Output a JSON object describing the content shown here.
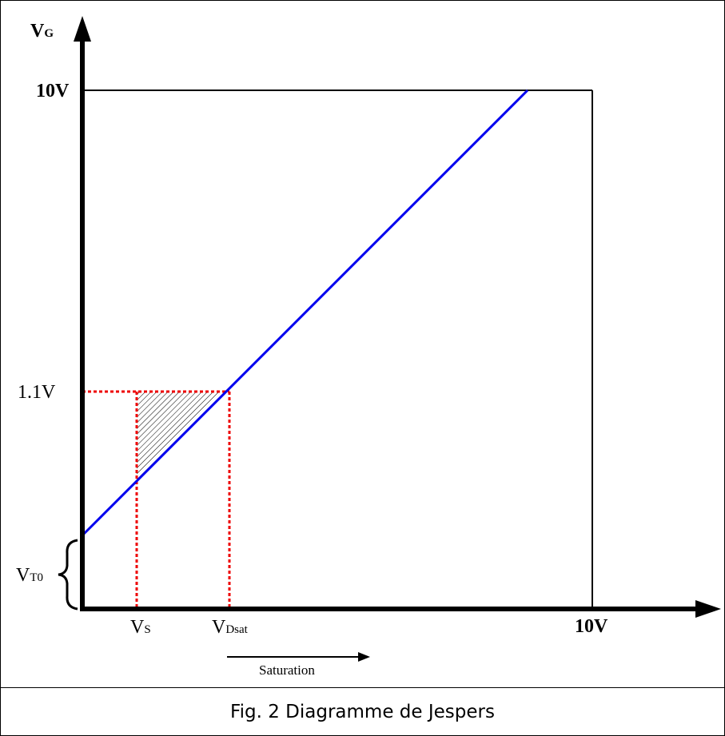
{
  "diagram": {
    "y_axis_label": {
      "main": "V",
      "sub": "G"
    },
    "x_axis_label": "10V",
    "y_top_label": "10V",
    "y_level_label": "1.1V",
    "vt0_label": {
      "main": "V",
      "sub": "T0"
    },
    "vs_label": {
      "main": "V",
      "sub": "S"
    },
    "vdsat_label": {
      "main": "V",
      "sub": "Dsat"
    },
    "saturation_label": "Saturation",
    "colors": {
      "line": "#0000ee",
      "guides": "#ee0000",
      "axes": "#000000"
    }
  },
  "caption": "Fig. 2 Diagramme de Jespers"
}
